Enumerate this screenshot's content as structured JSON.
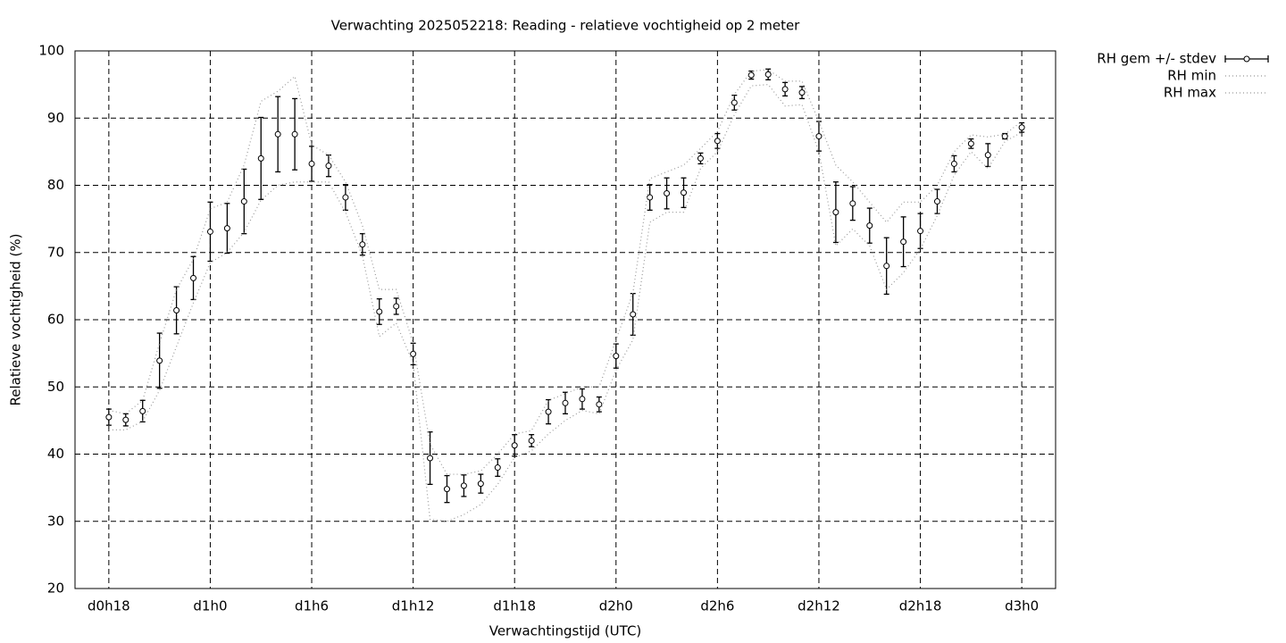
{
  "chart_data": {
    "type": "errorbar",
    "title": "Verwachting 2025052218: Reading - relatieve vochtigheid op 2 meter",
    "xlabel": "Verwachtingstijd (UTC)",
    "ylabel": "Relatieve vochtigheid (%)",
    "x": [
      18,
      19,
      20,
      21,
      22,
      23,
      24,
      25,
      26,
      27,
      28,
      29,
      30,
      31,
      32,
      33,
      34,
      35,
      36,
      37,
      38,
      39,
      40,
      41,
      42,
      43,
      44,
      45,
      46,
      47,
      48,
      49,
      50,
      51,
      52,
      53,
      54,
      55,
      56,
      57,
      58,
      59,
      60,
      61,
      62,
      63,
      64,
      65,
      66,
      67,
      68,
      69,
      70,
      71,
      72
    ],
    "xlim": [
      16,
      74
    ],
    "xticks": [
      {
        "value": 18,
        "label": "d0h18"
      },
      {
        "value": 24,
        "label": "d1h0"
      },
      {
        "value": 30,
        "label": "d1h6"
      },
      {
        "value": 36,
        "label": "d1h12"
      },
      {
        "value": 42,
        "label": "d1h18"
      },
      {
        "value": 48,
        "label": "d2h0"
      },
      {
        "value": 54,
        "label": "d2h6"
      },
      {
        "value": 60,
        "label": "d2h12"
      },
      {
        "value": 66,
        "label": "d2h18"
      },
      {
        "value": 72,
        "label": "d3h0"
      }
    ],
    "ylim": [
      20,
      100
    ],
    "yticks": [
      20,
      30,
      40,
      50,
      60,
      70,
      80,
      90,
      100
    ],
    "grid": true,
    "legend": "outside-top-right",
    "series": [
      {
        "name": "RH gem +/- stdev",
        "color": "#000000",
        "values": [
          45.5,
          45.1,
          46.4,
          53.9,
          61.4,
          66.2,
          73.1,
          73.6,
          77.6,
          84.0,
          87.6,
          87.6,
          83.2,
          82.9,
          78.2,
          71.2,
          61.2,
          62.0,
          54.9,
          39.4,
          34.8,
          35.3,
          35.6,
          38.0,
          41.3,
          42.0,
          46.3,
          47.6,
          48.2,
          47.4,
          54.6,
          60.8,
          78.2,
          78.8,
          78.9,
          84.0,
          86.6,
          92.3,
          96.4,
          96.5,
          94.3,
          93.8,
          87.3,
          76.0,
          77.3,
          74.0,
          68.0,
          71.6,
          73.2,
          77.6,
          83.2,
          86.2,
          84.5,
          87.3,
          88.6
        ],
        "errors": [
          1.2,
          0.9,
          1.6,
          4.1,
          3.5,
          3.2,
          4.4,
          3.7,
          4.8,
          6.1,
          5.6,
          5.3,
          2.6,
          1.6,
          1.9,
          1.6,
          1.9,
          1.2,
          1.6,
          3.9,
          2.0,
          1.6,
          1.4,
          1.3,
          1.6,
          0.9,
          1.8,
          1.6,
          1.5,
          1.1,
          1.8,
          3.1,
          1.9,
          2.3,
          2.2,
          0.8,
          1.1,
          1.1,
          0.6,
          0.8,
          1.0,
          0.9,
          2.2,
          4.5,
          2.5,
          2.6,
          4.2,
          3.7,
          2.6,
          1.8,
          1.2,
          0.7,
          1.7,
          0.4,
          0.7
        ]
      },
      {
        "name": "RH min",
        "color": "#999999",
        "values": [
          43.6,
          43.6,
          44.9,
          49.5,
          56,
          62.5,
          68.5,
          70,
          73,
          77.8,
          80,
          80.5,
          80.5,
          80.5,
          76,
          69.5,
          57.5,
          59.5,
          53.5,
          30.3,
          30,
          31,
          32.5,
          35.5,
          39.5,
          40.5,
          43,
          45,
          46.5,
          46,
          52.5,
          57,
          74.5,
          76,
          76,
          82.5,
          85,
          90.5,
          94.8,
          95,
          91.8,
          92,
          85,
          71,
          73.5,
          71,
          64.5,
          67,
          70.5,
          75.5,
          81.5,
          85,
          82.5,
          86.5,
          87.9
        ]
      },
      {
        "name": "RH max",
        "color": "#999999",
        "values": [
          46.5,
          46,
          48,
          56.5,
          64.5,
          69,
          76.5,
          77.5,
          83,
          92.5,
          94,
          96.2,
          86,
          84.5,
          80.5,
          74,
          64.5,
          64.5,
          56.5,
          41.5,
          37,
          37,
          37.5,
          40,
          43,
          43.5,
          48,
          49,
          50,
          50,
          57,
          64,
          81,
          82,
          83,
          85.5,
          88,
          93.5,
          97,
          97.2,
          95.5,
          95.5,
          89.5,
          83,
          80.5,
          77.5,
          74.5,
          77.5,
          77.5,
          80,
          85,
          87.5,
          87.2,
          87.6,
          89.5
        ]
      }
    ]
  }
}
